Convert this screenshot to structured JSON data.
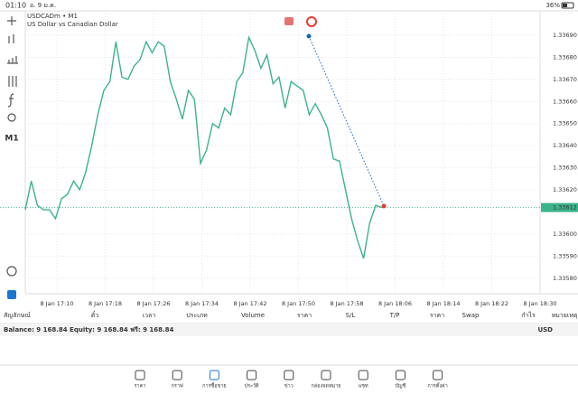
{
  "status_bar": {
    "time": "01:10",
    "date": "อ. 9 ม.ค.",
    "battery": "36%"
  },
  "toolbar": {
    "timeframe": "M1"
  },
  "chart_data": {
    "type": "line",
    "title": "USDCADm • M1",
    "subtitle": "US Dollar vs Canadian Dollar",
    "color": "#3cb38a",
    "values": [
      1.33611,
      1.33624,
      1.33613,
      1.33611,
      1.33611,
      1.33607,
      1.33616,
      1.33618,
      1.33624,
      1.3362,
      1.33628,
      1.3364,
      1.33654,
      1.33665,
      1.33669,
      1.33687,
      1.33671,
      1.3367,
      1.33676,
      1.33679,
      1.33687,
      1.33682,
      1.33687,
      1.33685,
      1.33669,
      1.33661,
      1.33652,
      1.33665,
      1.33661,
      1.33632,
      1.33638,
      1.3365,
      1.33648,
      1.33657,
      1.33654,
      1.33669,
      1.33673,
      1.33689,
      1.33683,
      1.33675,
      1.33681,
      1.33668,
      1.33671,
      1.33657,
      1.33669,
      1.33667,
      1.33665,
      1.33654,
      1.33659,
      1.33654,
      1.33648,
      1.33634,
      1.33633,
      1.3362,
      1.33607,
      1.33597,
      1.33589,
      1.33605,
      1.33613,
      1.33612
    ],
    "ylim": [
      1.33573,
      1.33701
    ],
    "yticks": [
      {
        "value": 1.3369,
        "label": "1.33690"
      },
      {
        "value": 1.3368,
        "label": "1.33680"
      },
      {
        "value": 1.3367,
        "label": "1.33670"
      },
      {
        "value": 1.3366,
        "label": "1.33660"
      },
      {
        "value": 1.3365,
        "label": "1.33650"
      },
      {
        "value": 1.3364,
        "label": "1.33640"
      },
      {
        "value": 1.3363,
        "label": "1.33630"
      },
      {
        "value": 1.3362,
        "label": "1.33620"
      },
      {
        "value": 1.336,
        "label": "1.33600"
      },
      {
        "value": 1.3359,
        "label": "1.33590"
      },
      {
        "value": 1.3358,
        "label": "1.33580"
      }
    ],
    "xticks": [
      "8 Jan 17:10",
      "8 Jan 17:18",
      "8 Jan 17:26",
      "8 Jan 17:34",
      "8 Jan 17:42",
      "8 Jan 17:50",
      "8 Jan 17:58",
      "8 Jan 18:06",
      "8 Jan 18:14",
      "8 Jan 18:22",
      "8 Jan 18:30"
    ],
    "current_price": {
      "value": 1.33612,
      "label": "1.33612"
    },
    "grid": true
  },
  "trade_table": {
    "headers": [
      "สัญลักษณ์",
      "ตั๋ว",
      "เวลา",
      "ประเภท",
      "Volume",
      "ราคา",
      "S/L",
      "T/P",
      "ราคา",
      "Swap",
      "กำไร",
      "หมายเหตุ"
    ],
    "summary": "Balance: 9 168.84 Equity: 9 168.84 ฟรี: 9 168.84",
    "currency": "USD"
  },
  "nav": {
    "items": [
      "ราคา",
      "กราฟ",
      "การซื้อขาย",
      "ประวัติ",
      "ข่าว",
      "กล่องจดหมาย",
      "แชท",
      "บัญชี",
      "การตั้งค่า"
    ],
    "active": 2
  }
}
